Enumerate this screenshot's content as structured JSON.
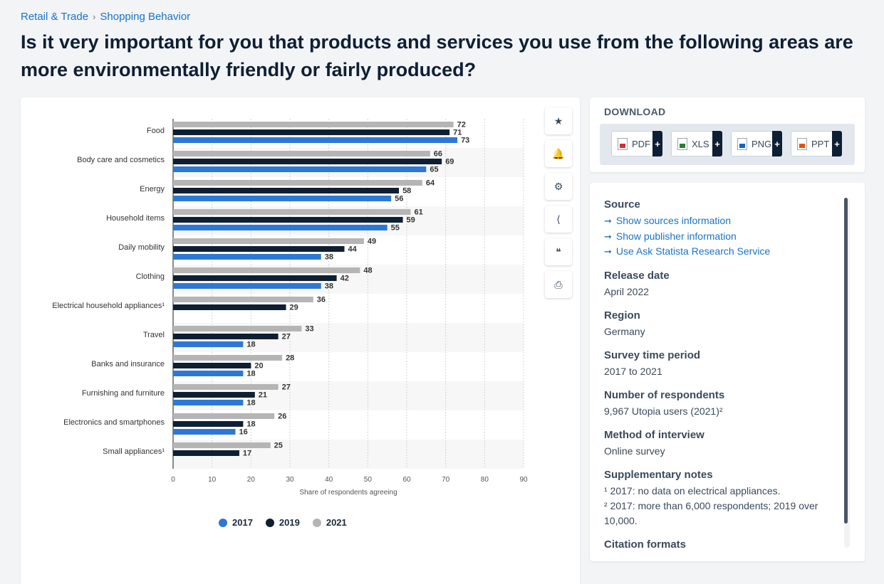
{
  "breadcrumb": {
    "category": "Retail & Trade",
    "separator": "›",
    "subcategory": "Shopping Behavior"
  },
  "title": "Is it very important for you that products and services you use from the following areas are more environmentally friendly or fairly produced?",
  "toolbar": {
    "icons": [
      "star-icon",
      "bell-icon",
      "gear-icon",
      "share-icon",
      "quote-icon",
      "print-icon"
    ],
    "glyphs": [
      "★",
      "🔔",
      "⚙",
      "⟨",
      "❝",
      "⎙"
    ]
  },
  "download": {
    "title": "DOWNLOAD",
    "buttons": [
      {
        "label": "PDF",
        "color": "#d32f2f"
      },
      {
        "label": "XLS",
        "color": "#2e7d32"
      },
      {
        "label": "PNG",
        "color": "#1565c0"
      },
      {
        "label": "PPT",
        "color": "#e65100"
      }
    ],
    "plus": "+"
  },
  "info": {
    "source_heading": "Source",
    "links": [
      "Show sources information",
      "Show publisher information",
      "Use Ask Statista Research Service"
    ],
    "arrow": "➞",
    "fields": [
      {
        "heading": "Release date",
        "value": "April 2022"
      },
      {
        "heading": "Region",
        "value": "Germany"
      },
      {
        "heading": "Survey time period",
        "value": "2017 to 2021"
      },
      {
        "heading": "Number of respondents",
        "value": "9,967 Utopia users (2021)²"
      },
      {
        "heading": "Method of interview",
        "value": "Online survey"
      }
    ],
    "notes_heading": "Supplementary notes",
    "notes": [
      "¹ 2017: no data on electrical appliances.",
      "² 2017: more than 6,000 respondents; 2019 over 10,000."
    ],
    "citation_heading": "Citation formats"
  },
  "chart_data": {
    "type": "bar",
    "orientation": "horizontal",
    "categories": [
      "Food",
      "Body care and cosmetics",
      "Energy",
      "Household items",
      "Daily mobility",
      "Clothing",
      "Electrical household appliances¹",
      "Travel",
      "Banks and insurance",
      "Furnishing and furniture",
      "Electronics and smartphones",
      "Small appliances¹"
    ],
    "series": [
      {
        "name": "2021",
        "color": "#b5b5b5",
        "values": [
          72,
          66,
          64,
          61,
          49,
          48,
          36,
          33,
          28,
          27,
          26,
          25
        ]
      },
      {
        "name": "2019",
        "color": "#0f1f33",
        "values": [
          71,
          69,
          58,
          59,
          44,
          42,
          29,
          27,
          20,
          21,
          18,
          17
        ]
      },
      {
        "name": "2017",
        "color": "#2d78d6",
        "values": [
          73,
          65,
          56,
          55,
          38,
          38,
          null,
          18,
          18,
          18,
          16,
          null
        ]
      }
    ],
    "legend_order": [
      "2017",
      "2019",
      "2021"
    ],
    "xlabel": "Share of respondents agreeing",
    "xlim": [
      0,
      90
    ],
    "xticks": [
      0,
      10,
      20,
      30,
      40,
      50,
      60,
      70,
      80,
      90
    ],
    "grid": true,
    "legend_position": "bottom"
  }
}
